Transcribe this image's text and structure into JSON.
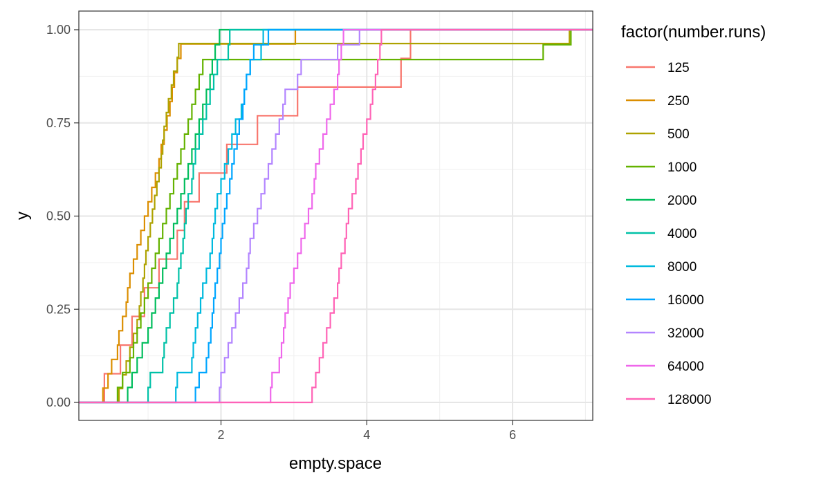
{
  "chart_data": {
    "type": "step",
    "title": "",
    "xlabel": "empty.space",
    "ylabel": "y",
    "xlim": [
      0.05,
      7.1
    ],
    "ylim": [
      0,
      1
    ],
    "x_ticks": [
      2,
      4,
      6
    ],
    "x_tick_labels": [
      "2",
      "4",
      "6"
    ],
    "y_ticks": [
      0,
      0.25,
      0.5,
      0.75,
      1
    ],
    "y_tick_labels": [
      "0.00",
      "0.25",
      "0.50",
      "0.75",
      "1.00"
    ],
    "grid": true,
    "legend": {
      "title": "factor(number.runs)",
      "position": "right"
    },
    "series": [
      {
        "name": "125",
        "color": "#F8766D",
        "x": [
          0.4,
          0.62,
          0.78,
          0.95,
          1.15,
          1.4,
          1.5,
          1.7,
          2.08,
          2.5,
          3.05,
          4.47,
          4.6
        ]
      },
      {
        "name": "250",
        "color": "#DB8E00",
        "x": [
          0.38,
          0.45,
          0.5,
          0.58,
          0.6,
          0.65,
          0.7,
          0.72,
          0.75,
          0.8,
          0.85,
          0.9,
          0.95,
          1.0,
          1.05,
          1.1,
          1.15,
          1.18,
          1.22,
          1.26,
          1.3,
          1.33,
          1.36,
          1.4,
          1.45,
          3.02
        ]
      },
      {
        "name": "500",
        "color": "#AEA200",
        "x": [
          0.6,
          0.65,
          0.7,
          0.75,
          0.8,
          0.85,
          0.88,
          0.9,
          0.93,
          0.95,
          0.97,
          1.0,
          1.03,
          1.06,
          1.09,
          1.12,
          1.15,
          1.18,
          1.2,
          1.22,
          1.25,
          1.28,
          1.32,
          1.35,
          1.4,
          1.42,
          6.78
        ]
      },
      {
        "name": "1000",
        "color": "#64B200",
        "x": [
          0.58,
          0.65,
          0.75,
          0.8,
          0.85,
          0.9,
          0.95,
          1.0,
          1.05,
          1.1,
          1.15,
          1.2,
          1.25,
          1.3,
          1.35,
          1.4,
          1.45,
          1.5,
          1.55,
          1.6,
          1.65,
          1.7,
          1.75,
          6.42,
          6.8
        ]
      },
      {
        "name": "2000",
        "color": "#00BD5C",
        "x": [
          0.72,
          0.78,
          0.85,
          0.92,
          1.0,
          1.05,
          1.1,
          1.15,
          1.2,
          1.25,
          1.3,
          1.35,
          1.4,
          1.45,
          1.5,
          1.55,
          1.6,
          1.65,
          1.7,
          1.75,
          1.8,
          1.85,
          1.88,
          1.92,
          1.98
        ]
      },
      {
        "name": "4000",
        "color": "#00C1A7",
        "x": [
          1.0,
          1.03,
          1.2,
          1.22,
          1.25,
          1.3,
          1.35,
          1.4,
          1.42,
          1.45,
          1.48,
          1.5,
          1.52,
          1.55,
          1.6,
          1.62,
          1.65,
          1.7,
          1.75,
          1.8,
          1.85,
          1.9,
          1.95,
          2.1,
          2.12
        ]
      },
      {
        "name": "8000",
        "color": "#00BADE",
        "x": [
          1.38,
          1.4,
          1.6,
          1.62,
          1.65,
          1.68,
          1.72,
          1.75,
          1.8,
          1.85,
          1.88,
          1.9,
          1.92,
          1.95,
          2.0,
          2.05,
          2.1,
          2.15,
          2.2,
          2.28,
          2.32,
          2.35,
          2.4,
          2.55,
          2.58
        ]
      },
      {
        "name": "16000",
        "color": "#00A6FF",
        "x": [
          1.65,
          1.7,
          1.8,
          1.83,
          1.86,
          1.88,
          1.9,
          1.92,
          1.95,
          1.98,
          2.0,
          2.02,
          2.05,
          2.08,
          2.12,
          2.15,
          2.18,
          2.22,
          2.25,
          2.3,
          2.32,
          2.35,
          2.4,
          2.45,
          2.65
        ]
      },
      {
        "name": "32000",
        "color": "#B385FF",
        "x": [
          1.98,
          2.0,
          2.05,
          2.1,
          2.15,
          2.2,
          2.25,
          2.3,
          2.35,
          2.38,
          2.4,
          2.45,
          2.5,
          2.55,
          2.6,
          2.65,
          2.7,
          2.75,
          2.8,
          2.85,
          2.88,
          3.05,
          3.1,
          3.6,
          3.9
        ]
      },
      {
        "name": "64000",
        "color": "#EF67EB",
        "x": [
          2.68,
          2.7,
          2.8,
          2.83,
          2.86,
          2.88,
          2.92,
          2.95,
          3.0,
          3.05,
          3.1,
          3.15,
          3.2,
          3.25,
          3.28,
          3.3,
          3.35,
          3.4,
          3.45,
          3.5,
          3.55,
          3.6,
          3.62,
          3.65,
          3.68
        ]
      },
      {
        "name": "128000",
        "color": "#FF63B6",
        "x": [
          3.25,
          3.3,
          3.35,
          3.4,
          3.45,
          3.5,
          3.55,
          3.6,
          3.62,
          3.65,
          3.7,
          3.72,
          3.75,
          3.8,
          3.85,
          3.88,
          3.92,
          3.95,
          4.0,
          4.05,
          4.08,
          4.12,
          4.15,
          4.18,
          4.2
        ]
      }
    ]
  }
}
